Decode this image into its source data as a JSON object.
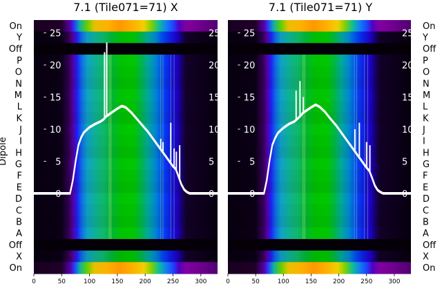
{
  "chart_data": [
    {
      "type": "heatmap",
      "title": "7.1 (Tile071=71) X",
      "ylabel": "Dipole",
      "row_labels": [
        "On",
        "Y",
        "Off",
        "P",
        "O",
        "N",
        "M",
        "L",
        "K",
        "J",
        "I",
        "H",
        "G",
        "F",
        "E",
        "D",
        "C",
        "B",
        "A",
        "Off",
        "X",
        "On"
      ],
      "x_ticks": [
        "0",
        "50",
        "100",
        "150",
        "200",
        "250",
        "300"
      ],
      "xlim": [
        0,
        330
      ],
      "overlay_ticks": [
        "25",
        "20",
        "15",
        "10",
        "5",
        "0"
      ],
      "overlay_ylim": [
        -12.5,
        27
      ],
      "colormap": "gnuplot2-like (black-purple-blue-cyan-green-yellow-orange)",
      "overlay_line": {
        "color": "#ffffff",
        "x": [
          0,
          65,
          70,
          75,
          80,
          85,
          90,
          100,
          110,
          120,
          125,
          130,
          135,
          140,
          150,
          158,
          165,
          175,
          185,
          195,
          205,
          215,
          225,
          230,
          240,
          245,
          250,
          255,
          260,
          265,
          270,
          275,
          280,
          330
        ],
        "y": [
          0,
          0,
          2,
          5,
          7.5,
          8.7,
          9.5,
          10.3,
          10.8,
          11.2,
          11.5,
          12,
          12.3,
          12.6,
          13.2,
          13.6,
          13.4,
          12.6,
          11.6,
          10.6,
          9.6,
          8.4,
          7.2,
          6.6,
          5.4,
          4.8,
          4.2,
          3.8,
          2.6,
          1.4,
          0.6,
          0.2,
          0,
          0
        ]
      },
      "overlay_spikes": [
        {
          "x": 127,
          "y": 22
        },
        {
          "x": 131,
          "y": 23.5
        },
        {
          "x": 228,
          "y": 8.5
        },
        {
          "x": 232,
          "y": 8.0
        },
        {
          "x": 246,
          "y": 11
        },
        {
          "x": 252,
          "y": 7
        },
        {
          "x": 256,
          "y": 6.5
        },
        {
          "x": 262,
          "y": 7.5
        }
      ]
    },
    {
      "type": "heatmap",
      "title": "7.1 (Tile071=71) Y",
      "row_labels": [
        "On",
        "Y",
        "Off",
        "P",
        "O",
        "N",
        "M",
        "L",
        "K",
        "J",
        "I",
        "H",
        "G",
        "F",
        "E",
        "D",
        "C",
        "B",
        "A",
        "Off",
        "X",
        "On"
      ],
      "x_ticks": [
        "0",
        "50",
        "100",
        "150",
        "200",
        "250",
        "300"
      ],
      "xlim": [
        0,
        330
      ],
      "overlay_ticks": [
        "25",
        "20",
        "15",
        "10",
        "5",
        "0"
      ],
      "overlay_ylim": [
        -12.5,
        27
      ],
      "colormap": "gnuplot2-like (black-purple-blue-cyan-green-yellow-orange)",
      "overlay_line": {
        "color": "#ffffff",
        "x": [
          0,
          65,
          70,
          75,
          80,
          85,
          90,
          100,
          110,
          120,
          125,
          130,
          135,
          140,
          150,
          158,
          165,
          175,
          185,
          195,
          205,
          215,
          225,
          230,
          240,
          245,
          250,
          255,
          260,
          265,
          270,
          275,
          280,
          330
        ],
        "y": [
          0,
          0,
          2,
          5,
          7.5,
          8.6,
          9.4,
          10.2,
          10.8,
          11.2,
          11.6,
          12,
          12.5,
          12.8,
          13.4,
          13.8,
          13.5,
          12.7,
          11.6,
          10.6,
          9.4,
          8.2,
          7.0,
          6.4,
          5.2,
          4.6,
          4.0,
          3.5,
          2.4,
          1.2,
          0.5,
          0.2,
          0,
          0
        ]
      },
      "overlay_spikes": [
        {
          "x": 123,
          "y": 16
        },
        {
          "x": 130,
          "y": 17.5
        },
        {
          "x": 136,
          "y": 15
        },
        {
          "x": 229,
          "y": 10
        },
        {
          "x": 237,
          "y": 11
        },
        {
          "x": 250,
          "y": 8
        },
        {
          "x": 256,
          "y": 7.5
        }
      ]
    }
  ]
}
